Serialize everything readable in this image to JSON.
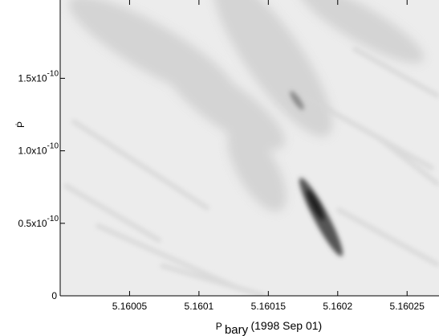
{
  "chart_data": {
    "type": "density-map",
    "x_label": {
      "symbol": "P",
      "subscript": "bary",
      "text": "(1998 Sep 01)"
    },
    "y_label": "Ṗ",
    "xlim": [
      5.16,
      5.160273
    ],
    "xticks": [
      5.16005,
      5.1601,
      5.16015,
      5.1602,
      5.16025
    ],
    "ylim": [
      0,
      2.04e-10
    ],
    "yticks": [
      0,
      {
        "value": 5e-11,
        "label": "0.5x10",
        "exponent": "-10"
      },
      {
        "value": 1e-10,
        "label": "1.0x10",
        "exponent": "-10"
      },
      {
        "value": 1.5e-10,
        "label": "1.5x10",
        "exponent": "-10"
      }
    ]
  }
}
